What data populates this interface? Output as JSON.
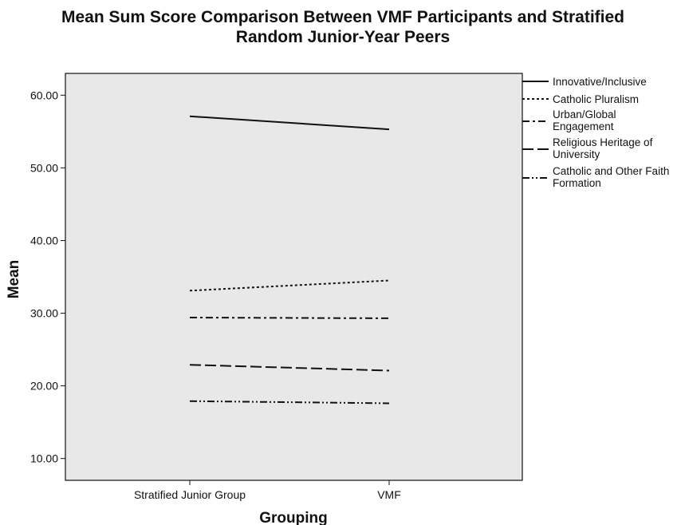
{
  "chart_data": {
    "type": "line",
    "title_lines": [
      "Mean Sum Score Comparison Between VMF Participants and Stratified",
      "Random Junior-Year Peers"
    ],
    "xlabel": "Grouping",
    "ylabel": "Mean",
    "categories": [
      "Stratified Junior Group",
      "VMF"
    ],
    "ylim": [
      7,
      63
    ],
    "yticks": [
      10,
      20,
      30,
      40,
      50,
      60
    ],
    "ytick_labels": [
      "10.00",
      "20.00",
      "30.00",
      "40.00",
      "50.00",
      "60.00"
    ],
    "plot_background": "#e8e8e8",
    "grid": false,
    "legend_position": "right",
    "series": [
      {
        "name": "Innovative/Inclusive",
        "label_lines": [
          "Innovative/Inclusive"
        ],
        "values": [
          57.1,
          55.3
        ],
        "dash": "solid"
      },
      {
        "name": "Catholic Pluralism",
        "label_lines": [
          "Catholic Pluralism"
        ],
        "values": [
          33.1,
          34.5
        ],
        "dash": "dot"
      },
      {
        "name": "Urban/Global Engagement",
        "label_lines": [
          "Urban/Global",
          "Engagement"
        ],
        "values": [
          29.4,
          29.3
        ],
        "dash": "dashdot"
      },
      {
        "name": "Religious Heritage of University",
        "label_lines": [
          "Religious Heritage of",
          "University"
        ],
        "values": [
          22.9,
          22.1
        ],
        "dash": "longdash"
      },
      {
        "name": "Catholic and Other Faith Formation",
        "label_lines": [
          "Catholic and Other Faith",
          "Formation"
        ],
        "values": [
          17.9,
          17.6
        ],
        "dash": "dashdotdot"
      }
    ]
  }
}
